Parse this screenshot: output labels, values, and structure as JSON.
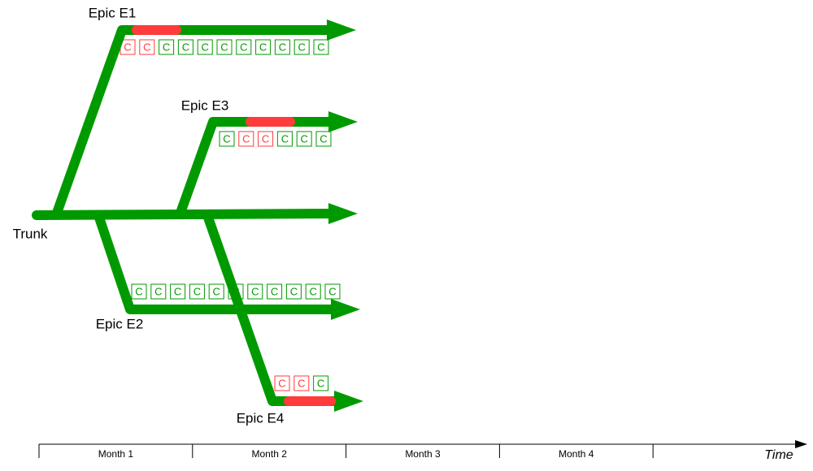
{
  "branches": [
    {
      "label": "Epic E1",
      "commits": [
        {
          "label": "C",
          "status": "failed"
        },
        {
          "label": "C",
          "status": "failed"
        },
        {
          "label": "C",
          "status": "passed"
        },
        {
          "label": "C",
          "status": "passed"
        },
        {
          "label": "C",
          "status": "passed"
        },
        {
          "label": "C",
          "status": "passed"
        },
        {
          "label": "C",
          "status": "passed"
        },
        {
          "label": "C",
          "status": "passed"
        },
        {
          "label": "C",
          "status": "passed"
        },
        {
          "label": "C",
          "status": "passed"
        },
        {
          "label": "C",
          "status": "passed"
        }
      ]
    },
    {
      "label": "Epic E3",
      "commits": [
        {
          "label": "C",
          "status": "passed"
        },
        {
          "label": "C",
          "status": "failed"
        },
        {
          "label": "C",
          "status": "failed"
        },
        {
          "label": "C",
          "status": "passed"
        },
        {
          "label": "C",
          "status": "passed"
        },
        {
          "label": "C",
          "status": "passed"
        }
      ]
    },
    {
      "label": "Trunk",
      "commits": []
    },
    {
      "label": "Epic E2",
      "commits": [
        {
          "label": "C",
          "status": "passed"
        },
        {
          "label": "C",
          "status": "passed"
        },
        {
          "label": "C",
          "status": "passed"
        },
        {
          "label": "C",
          "status": "passed"
        },
        {
          "label": "C",
          "status": "passed"
        },
        {
          "label": "C",
          "status": "passed"
        },
        {
          "label": "C",
          "status": "passed"
        },
        {
          "label": "C",
          "status": "passed"
        },
        {
          "label": "C",
          "status": "passed"
        },
        {
          "label": "C",
          "status": "passed"
        },
        {
          "label": "C",
          "status": "passed"
        }
      ]
    },
    {
      "label": "Epic E4",
      "commits": [
        {
          "label": "C",
          "status": "failed"
        },
        {
          "label": "C",
          "status": "failed"
        },
        {
          "label": "C",
          "status": "passed"
        }
      ]
    }
  ],
  "timeline": {
    "months": [
      "Month 1",
      "Month 2",
      "Month 3",
      "Month 4"
    ],
    "axis_label": "Time"
  }
}
